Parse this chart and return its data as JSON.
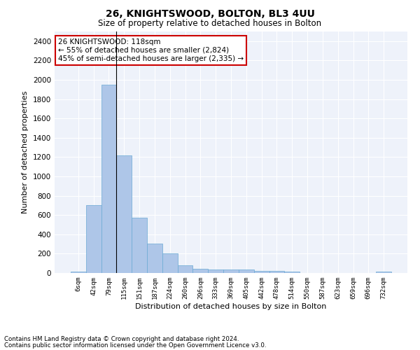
{
  "title1": "26, KNIGHTSWOOD, BOLTON, BL3 4UU",
  "title2": "Size of property relative to detached houses in Bolton",
  "xlabel": "Distribution of detached houses by size in Bolton",
  "ylabel": "Number of detached properties",
  "bar_color": "#aec6e8",
  "bar_edge_color": "#6aaad4",
  "background_color": "#eef2fa",
  "grid_color": "#ffffff",
  "categories": [
    "6sqm",
    "42sqm",
    "79sqm",
    "115sqm",
    "151sqm",
    "187sqm",
    "224sqm",
    "260sqm",
    "296sqm",
    "333sqm",
    "369sqm",
    "405sqm",
    "442sqm",
    "478sqm",
    "514sqm",
    "550sqm",
    "587sqm",
    "623sqm",
    "659sqm",
    "696sqm",
    "732sqm"
  ],
  "values": [
    15,
    700,
    1950,
    1220,
    575,
    305,
    200,
    80,
    45,
    38,
    35,
    35,
    25,
    20,
    15,
    0,
    0,
    0,
    0,
    0,
    15
  ],
  "ylim": [
    0,
    2500
  ],
  "yticks": [
    0,
    200,
    400,
    600,
    800,
    1000,
    1200,
    1400,
    1600,
    1800,
    2000,
    2200,
    2400
  ],
  "annotation_text": "26 KNIGHTSWOOD: 118sqm\n← 55% of detached houses are smaller (2,824)\n45% of semi-detached houses are larger (2,335) →",
  "annotation_box_color": "#ffffff",
  "annotation_border_color": "#cc0000",
  "footnote1": "Contains HM Land Registry data © Crown copyright and database right 2024.",
  "footnote2": "Contains public sector information licensed under the Open Government Licence v3.0."
}
